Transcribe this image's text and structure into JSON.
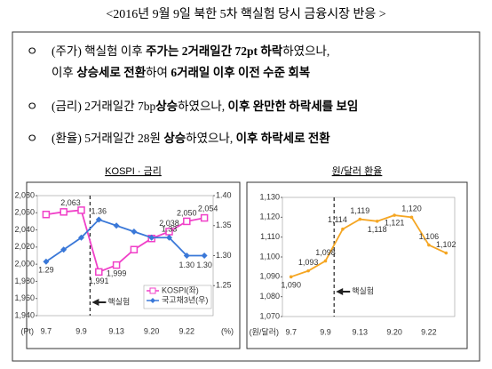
{
  "title": "<2016년 9월 9일 북한 5차 핵실험 당시 금융시장 반응 >",
  "bullets": [
    {
      "marker": "ㅇ",
      "lines": [
        [
          {
            "text": "(주가) 핵실험 이후 ",
            "bold": false
          },
          {
            "text": "주가는 ",
            "bold": true
          },
          {
            "text": "2거래일간 72pt 하락",
            "bold": true
          },
          {
            "text": "하였으나,",
            "bold": false
          }
        ],
        [
          {
            "text": "이후 ",
            "bold": false
          },
          {
            "text": "상승세로 전환",
            "bold": true
          },
          {
            "text": "하여 ",
            "bold": false
          },
          {
            "text": "6거래일 이후 이전 수준 회복",
            "bold": true
          }
        ]
      ]
    },
    {
      "marker": "ㅇ",
      "lines": [
        [
          {
            "text": "(금리) 2거래일간 7bp",
            "bold": false
          },
          {
            "text": "상승",
            "bold": true
          },
          {
            "text": "하였으나, ",
            "bold": false
          },
          {
            "text": "이후 완만한 하락세를 보임",
            "bold": true
          }
        ]
      ]
    },
    {
      "marker": "ㅇ",
      "lines": [
        [
          {
            "text": "(환율) 5거래일간 28원 ",
            "bold": false
          },
          {
            "text": "상승",
            "bold": true
          },
          {
            "text": "하였으나, ",
            "bold": false
          },
          {
            "text": "이후 하락세로 전환",
            "bold": true
          }
        ]
      ]
    }
  ],
  "chart_data": [
    {
      "type": "line",
      "title": "KOSPI · 금리",
      "y_unit": "(Pt)",
      "y2_unit": "(%)",
      "annotation": "핵실험",
      "grid": false,
      "categories": [
        "9.7",
        null,
        "9.9",
        null,
        "9.13",
        null,
        "9.20",
        null,
        "9.22",
        null
      ],
      "ylim": [
        1940,
        2080
      ],
      "yticks": [
        {
          "value": 1940,
          "label": "1,940"
        },
        {
          "value": 1960,
          "label": "1,960"
        },
        {
          "value": 1980,
          "label": "1,980"
        },
        {
          "value": 2000,
          "label": "2,000"
        },
        {
          "value": 2020,
          "label": "2,020"
        },
        {
          "value": 2040,
          "label": "2,040"
        },
        {
          "value": 2060,
          "label": "2,060"
        },
        {
          "value": 2080,
          "label": "2,080"
        }
      ],
      "y2lim": [
        1.2,
        1.4
      ],
      "y2ticks": [
        {
          "value": 1.25,
          "label": "1.25"
        },
        {
          "value": 1.3,
          "label": "1.30"
        },
        {
          "value": 1.35,
          "label": "1.35"
        },
        {
          "value": 1.4,
          "label": "1.40"
        }
      ],
      "legend": "bottom-right",
      "series": [
        {
          "name": "KOSPI(좌)",
          "color": "#f040c8",
          "marker": "square",
          "values": [
            2058,
            2061,
            2063,
            1991,
            1999,
            2017,
            2030,
            2038,
            2050,
            2054
          ],
          "value_labels": [
            null,
            null,
            "2,063",
            "1,991",
            "1,999",
            null,
            null,
            "2,038",
            "2,050",
            "2,054"
          ]
        },
        {
          "name": "국고채3년(우)",
          "color": "#3a78d8",
          "marker": "diamond",
          "axis": "y2",
          "values": [
            1.29,
            1.31,
            1.33,
            1.36,
            1.35,
            1.34,
            1.33,
            1.33,
            1.3,
            1.3
          ],
          "value_labels": [
            "1.29",
            null,
            null,
            "1.36",
            null,
            null,
            null,
            "1.33",
            "1.30",
            "1.30"
          ]
        }
      ]
    },
    {
      "type": "line",
      "title": "원/달러 환율",
      "y_unit": "(원/달러)",
      "annotation": "핵실험",
      "grid": false,
      "categories": [
        "9.7",
        null,
        "9.9",
        null,
        "9.13",
        null,
        "9.20",
        null,
        "9.22",
        null
      ],
      "ylim": [
        1070,
        1130
      ],
      "yticks": [
        {
          "value": 1070,
          "label": "1,070"
        },
        {
          "value": 1080,
          "label": "1,080"
        },
        {
          "value": 1090,
          "label": "1,090"
        },
        {
          "value": 1100,
          "label": "1,100"
        },
        {
          "value": 1110,
          "label": "1,110"
        },
        {
          "value": 1120,
          "label": "1,120"
        },
        {
          "value": 1130,
          "label": "1,130"
        }
      ],
      "series": [
        {
          "color": "#f5a623",
          "marker": "circle",
          "values": [
            1090,
            1093,
            1098,
            1114,
            1119,
            1118,
            1121,
            1120,
            1106,
            1102
          ],
          "value_labels": [
            "1,090",
            "1,093",
            "1,098",
            "1,114",
            "1,119",
            "1,118",
            "1,121",
            "1,120",
            "1,106",
            "1,102"
          ]
        }
      ]
    }
  ]
}
